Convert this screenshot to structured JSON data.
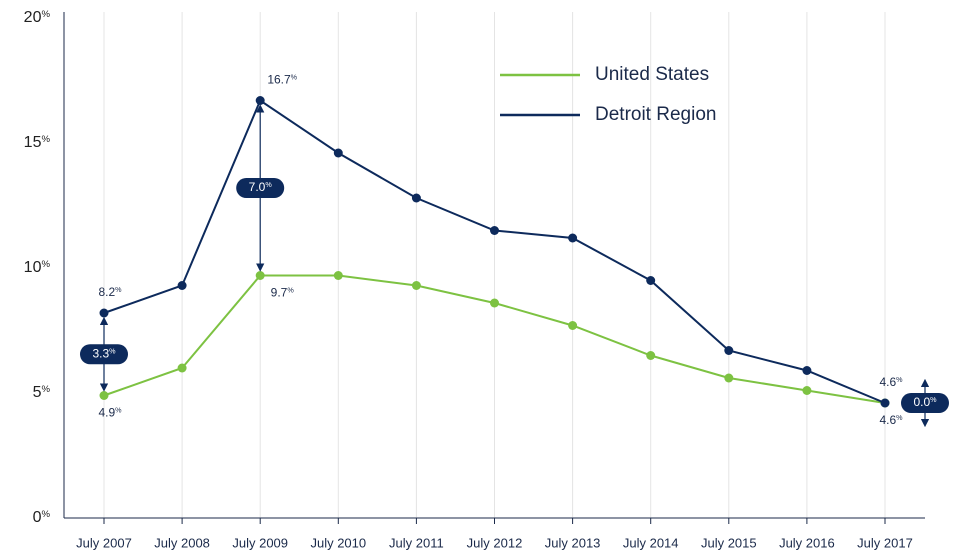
{
  "chart_data": {
    "type": "line",
    "categories": [
      "July 2007",
      "July 2008",
      "July 2009",
      "July 2010",
      "July 2011",
      "July 2012",
      "July 2013",
      "July 2014",
      "July 2015",
      "July 2016",
      "July 2017"
    ],
    "series": [
      {
        "name": "United States",
        "color": "#7dc242",
        "values": [
          4.9,
          6.0,
          9.7,
          9.7,
          9.3,
          8.6,
          7.7,
          6.5,
          5.6,
          5.1,
          4.6
        ],
        "value_labels": [
          "4.9%",
          null,
          "9.7%",
          null,
          null,
          null,
          null,
          null,
          null,
          null,
          "4.6%"
        ]
      },
      {
        "name": "Detroit Region",
        "color": "#0d2a5c",
        "values": [
          8.2,
          9.3,
          16.7,
          14.6,
          12.8,
          11.5,
          11.2,
          9.5,
          6.7,
          5.9,
          4.6
        ],
        "value_labels": [
          "8.2%",
          null,
          "16.7%",
          null,
          null,
          null,
          null,
          null,
          null,
          null,
          "4.6%"
        ]
      }
    ],
    "annotations": [
      {
        "x": "July 2007",
        "value": 3.3,
        "label": "3.3%"
      },
      {
        "x": "July 2009",
        "value": 7.0,
        "label": "7.0%"
      },
      {
        "x": "July 2017",
        "value": 0.0,
        "label": "0.0%"
      }
    ],
    "ylim": [
      0,
      20
    ],
    "yticks": [
      {
        "value": 0,
        "label": "0%"
      },
      {
        "value": 5,
        "label": "5%"
      },
      {
        "value": 10,
        "label": "10%"
      },
      {
        "value": 15,
        "label": "15%"
      },
      {
        "value": 20,
        "label": "20%"
      }
    ],
    "grid": true,
    "legend": "upper right"
  }
}
